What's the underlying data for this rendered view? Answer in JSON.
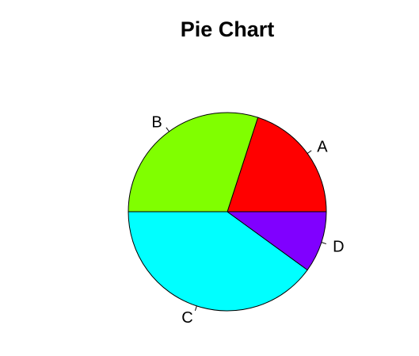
{
  "chart_data": {
    "type": "pie",
    "title": "Pie Chart",
    "slices": [
      {
        "label": "A",
        "value": 0.2,
        "color": "#FF0000"
      },
      {
        "label": "B",
        "value": 0.3,
        "color": "#80FF00"
      },
      {
        "label": "C",
        "value": 0.4,
        "color": "#00FFFF"
      },
      {
        "label": "D",
        "value": 0.1,
        "color": "#8000FF"
      }
    ],
    "start_angle_deg": 0,
    "direction": "counterclockwise",
    "legend": "none"
  }
}
